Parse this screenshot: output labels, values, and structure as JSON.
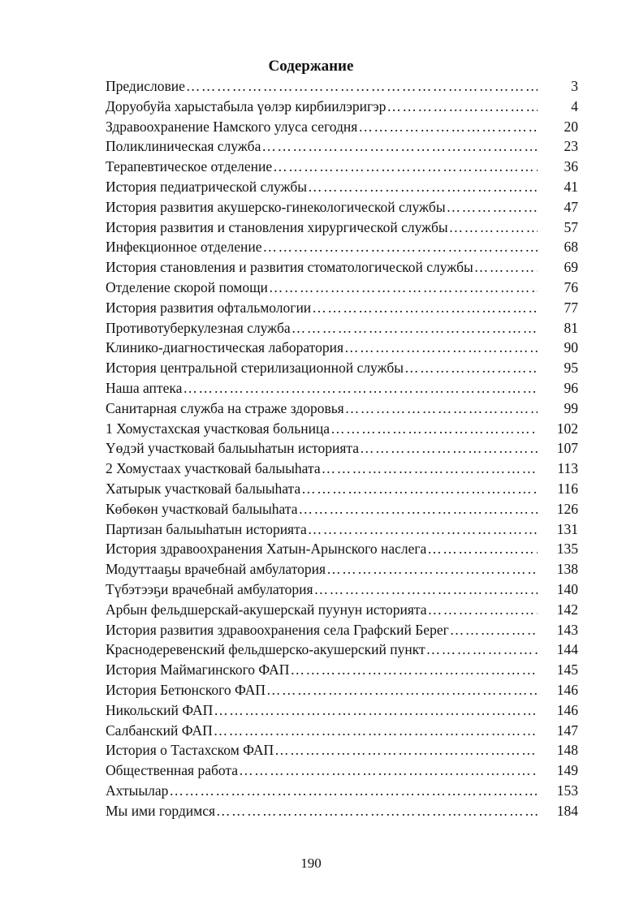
{
  "title": "Содержание",
  "entries": [
    {
      "label": "Предисловие",
      "page": "3"
    },
    {
      "label": "Доруобуйа харыстабыла үөлэр кирбиилэригэр",
      "page": "4"
    },
    {
      "label": "Здравоохранение Намского улуса сегодня",
      "page": "20"
    },
    {
      "label": "Поликлиническая служба",
      "page": "23"
    },
    {
      "label": "Терапевтическое отделение",
      "page": "36"
    },
    {
      "label": "История педиатрической службы",
      "page": "41"
    },
    {
      "label": "История развития акушерско-гинекологической службы",
      "page": "47"
    },
    {
      "label": "История развития и становления хирургической службы",
      "page": "57"
    },
    {
      "label": "Инфекционное отделение",
      "page": "68"
    },
    {
      "label": "История становления и развития стоматологической службы",
      "page": "69"
    },
    {
      "label": "Отделение скорой помощи",
      "page": "76"
    },
    {
      "label": "История развития офтальмологии",
      "page": "77"
    },
    {
      "label": "Противотуберкулезная служба",
      "page": "81"
    },
    {
      "label": "Клинико-диагностическая лаборатория",
      "page": "90"
    },
    {
      "label": "История центральной стерилизационной службы",
      "page": "95"
    },
    {
      "label": "Наша аптека",
      "page": "96"
    },
    {
      "label": "Санитарная служба на страже здоровья",
      "page": "99"
    },
    {
      "label": "1 Хомустахская участковая больница",
      "page": "102"
    },
    {
      "label": "Үөдэй участковай балыыһатын историята",
      "page": "107"
    },
    {
      "label": "2 Хомустаах участковай балыыһата",
      "page": "113"
    },
    {
      "label": "Хатырык участковай балыыһата",
      "page": "116"
    },
    {
      "label": "Көбөкөн участковай балыыһата",
      "page": "126"
    },
    {
      "label": "Партизан балыыһатын историята",
      "page": "131"
    },
    {
      "label": "История здравоохранения Хатын-Арынского наслега",
      "page": "135"
    },
    {
      "label": "Модуттааҕы врачебнай амбулатория",
      "page": "138"
    },
    {
      "label": "Түбэтээҕи врачебнай амбулатория",
      "page": "140"
    },
    {
      "label": "Арбын фельдшерскай-акушерскай пуунун историята",
      "page": "142"
    },
    {
      "label": "История развития здравоохранения села Графский Берег",
      "page": "143"
    },
    {
      "label": "Краснодеревенский фельдшерско-акушерский пункт",
      "page": "144"
    },
    {
      "label": "История Маймагинского ФАП",
      "page": "145"
    },
    {
      "label": "История Бетюнского ФАП",
      "page": "146"
    },
    {
      "label": "Никольский ФАП",
      "page": "146"
    },
    {
      "label": "Салбанский ФАП",
      "page": "147"
    },
    {
      "label": "История о Тастахском ФАП",
      "page": "148"
    },
    {
      "label": "Общественная работа",
      "page": "149"
    },
    {
      "label": "Ахтыылар",
      "page": "153"
    },
    {
      "label": "Мы ими гордимся",
      "page": "184"
    }
  ],
  "page_number": "190"
}
